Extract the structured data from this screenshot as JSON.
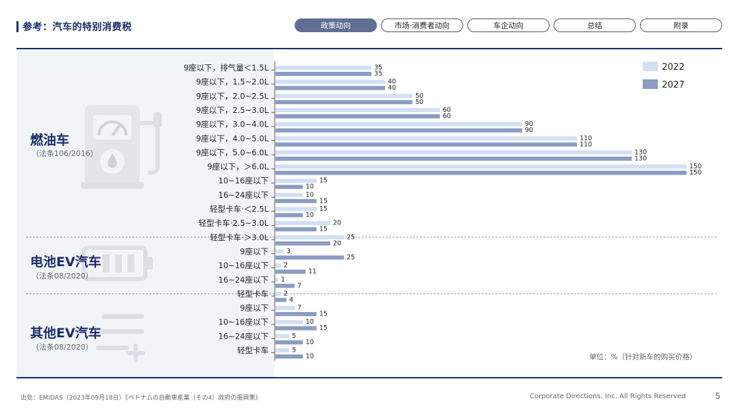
{
  "header": {
    "title": "参考：汽车的特别消费税",
    "tabs": [
      {
        "label": "政策动向",
        "active": true
      },
      {
        "label": "市场·消费者动向",
        "active": false
      },
      {
        "label": "车企动向",
        "active": false
      },
      {
        "label": "总结",
        "active": false
      },
      {
        "label": "附录",
        "active": false
      }
    ]
  },
  "groups": [
    {
      "title": "燃油车",
      "note": "（法条106/2016）",
      "icon": "fuel-pump-icon"
    },
    {
      "title": "电池EV汽车",
      "note": "（法条08/2020）",
      "icon": "battery-icon"
    },
    {
      "title": "其他EV汽车",
      "note": "（法条08/2020）",
      "icon": "list-plus-icon"
    }
  ],
  "unit_note": "单位：%（针对新车的购买价格）",
  "footer": {
    "source": "出处：EMIDAS（2023年09月18日）《ベトナムの自動車産業（その4）政府の振興策》",
    "copyright": "Corporate Directions, Inc. All Rights Reserved",
    "page": "5"
  },
  "colors": {
    "s2022": "#d3dff2",
    "s2027": "#8c9cc2",
    "accent": "#1a2c6b"
  },
  "chart_data": {
    "type": "bar",
    "orientation": "horizontal",
    "xlim": [
      0,
      150
    ],
    "legend_position": "top-right",
    "categories": [
      "9座以下，排气量＜1.5L",
      "9座以下，1.5~2.0L",
      "9座以下，2.0~2.5L",
      "9座以下，2.5~3.0L",
      "9座以下，3.0~4.0L",
      "9座以下，4.0~5.0L",
      "9座以下，5.0~6.0L",
      "9座以下，＞6.0L",
      "10~16座以下",
      "16~24座以下",
      "轻型卡车·＜2.5L",
      "轻型卡车·2.5~3.0L",
      "轻型卡车·＞3.0L",
      "9座以下",
      "10~16座以下",
      "16~24座以下",
      "轻型卡车",
      "9座以下",
      "10~16座以下",
      "16~24座以下",
      "轻型卡车"
    ],
    "series": [
      {
        "name": "2022",
        "values": [
          35,
          40,
          50,
          60,
          90,
          110,
          130,
          150,
          15,
          10,
          15,
          20,
          25,
          3,
          2,
          1,
          2,
          7,
          10,
          5,
          5
        ]
      },
      {
        "name": "2027",
        "values": [
          35,
          40,
          50,
          60,
          90,
          110,
          130,
          150,
          10,
          15,
          10,
          15,
          20,
          25,
          11,
          7,
          4,
          15,
          15,
          10,
          10
        ]
      }
    ],
    "value_labels": {
      "2022": [
        "35",
        "40",
        "50",
        "60",
        "90",
        "110",
        "130",
        "150",
        "15",
        "10",
        "15",
        "20",
        "25",
        "3",
        "2",
        "1",
        "2",
        "7",
        "10",
        "5",
        "5"
      ],
      "2027": [
        "35",
        "40",
        "50",
        "60",
        "90",
        "110",
        "130",
        "150",
        "10",
        "15",
        "10",
        "15",
        "20",
        "25",
        "11",
        "7",
        "4",
        "15",
        "15",
        "10",
        "10"
      ]
    }
  }
}
